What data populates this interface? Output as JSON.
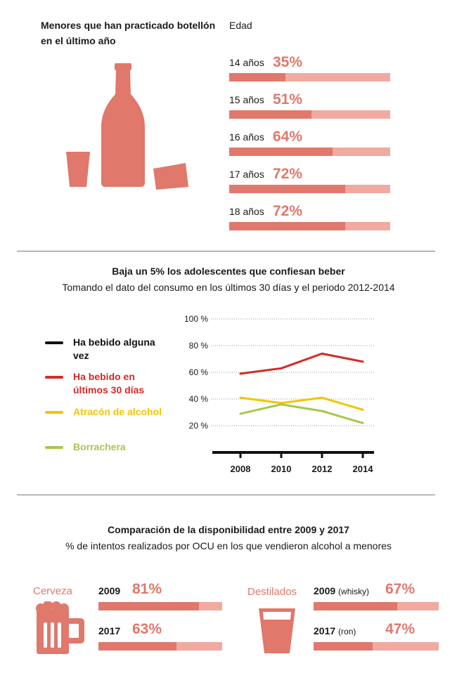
{
  "colors": {
    "salmon": "#e0786c",
    "salmon_light": "#f0aaa0"
  },
  "section1": {
    "title": "Menores que han practicado botellón en el último año",
    "edad_label": "Edad",
    "rows": [
      {
        "label": "14 años",
        "pct_label": "35%",
        "value": 35
      },
      {
        "label": "15 años",
        "pct_label": "51%",
        "value": 51
      },
      {
        "label": "16 años",
        "pct_label": "64%",
        "value": 64
      },
      {
        "label": "17 años",
        "pct_label": "72%",
        "value": 72
      },
      {
        "label": "18 años",
        "pct_label": "72%",
        "value": 72
      }
    ]
  },
  "section2": {
    "title": "Baja un 5% los adolescentes que confiesan beber",
    "subtitle": "Tomando el dato del consumo en los últimos 30 días y el periodo 2012-2014",
    "legend": [
      {
        "label": "Ha bebido alguna vez",
        "color": "#111111"
      },
      {
        "label": "Ha bebido en últimos 30 días",
        "color": "#d42a27"
      },
      {
        "label": "Atracón de alcohol",
        "color": "#f5c400"
      },
      {
        "label": "Borrachera",
        "color": "#a8c64e"
      }
    ]
  },
  "chart_data": {
    "type": "line",
    "x": [
      "2008",
      "2010",
      "2012",
      "2014"
    ],
    "ylim": [
      0,
      100
    ],
    "y_ticks": [
      "20 %",
      "40 %",
      "60 %",
      "80 %",
      "100 %"
    ],
    "y_tick_values": [
      20,
      40,
      60,
      80,
      100
    ],
    "grid": true,
    "series": [
      {
        "name": "Ha bebido en últimos 30 días",
        "color": "#d42a27",
        "values": [
          59,
          63,
          74,
          68
        ]
      },
      {
        "name": "Atracón de alcohol",
        "color": "#f5c400",
        "values": [
          41,
          37,
          41,
          32
        ]
      },
      {
        "name": "Borrachera",
        "color": "#a8c64e",
        "values": [
          29,
          36,
          31,
          22
        ]
      }
    ]
  },
  "section3": {
    "title": "Comparación de la disponibilidad entre 2009 y 2017",
    "subtitle": "% de intentos realizados por OCU en los que vendieron alcohol a menores",
    "cerveza": {
      "label": "Cerveza",
      "rows": [
        {
          "year": "2009",
          "note": "",
          "pct_label": "81%",
          "value": 81
        },
        {
          "year": "2017",
          "note": "",
          "pct_label": "63%",
          "value": 63
        }
      ]
    },
    "destilados": {
      "label": "Destilados",
      "rows": [
        {
          "year": "2009",
          "note": "(whisky)",
          "pct_label": "67%",
          "value": 67
        },
        {
          "year": "2017",
          "note": "(ron)",
          "pct_label": "47%",
          "value": 47
        }
      ]
    }
  }
}
